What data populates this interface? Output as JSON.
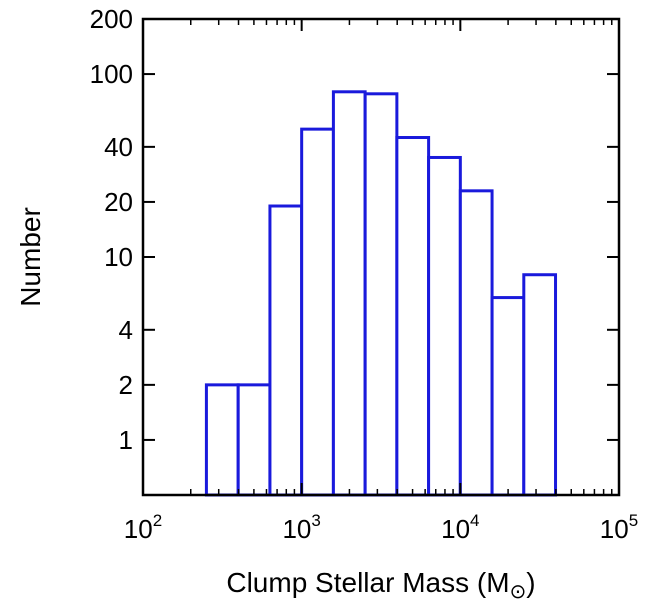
{
  "chart_data": {
    "type": "bar",
    "subtype": "histogram",
    "xlabel": "Clump Stellar Mass (M",
    "xlabel_subscript": "⊙",
    "xlabel_close": ")",
    "ylabel": "Number",
    "xscale": "log",
    "yscale": "log",
    "xlim": [
      100,
      100000
    ],
    "ylim": [
      0.5,
      200
    ],
    "x_ticks": [
      {
        "value": 100,
        "base": "10",
        "exp": "2"
      },
      {
        "value": 1000,
        "base": "10",
        "exp": "3"
      },
      {
        "value": 10000,
        "base": "10",
        "exp": "4"
      },
      {
        "value": 100000,
        "base": "10",
        "exp": "5"
      }
    ],
    "y_ticks": [
      {
        "value": 200,
        "label": "200"
      },
      {
        "value": 100,
        "label": "100"
      },
      {
        "value": 40,
        "label": "40"
      },
      {
        "value": 20,
        "label": "20"
      },
      {
        "value": 10,
        "label": "10"
      },
      {
        "value": 4,
        "label": "4"
      },
      {
        "value": 2,
        "label": "2"
      },
      {
        "value": 1,
        "label": "1"
      }
    ],
    "bin_edges": [
      251,
      398,
      631,
      1000,
      1585,
      2512,
      3981,
      6310,
      10000,
      15849,
      25119,
      39811
    ],
    "counts": [
      2,
      2,
      19,
      50,
      80,
      78,
      45,
      35,
      23,
      6,
      8
    ],
    "bar_color": "#1a1adc",
    "bar_fill": "#ffffff"
  }
}
